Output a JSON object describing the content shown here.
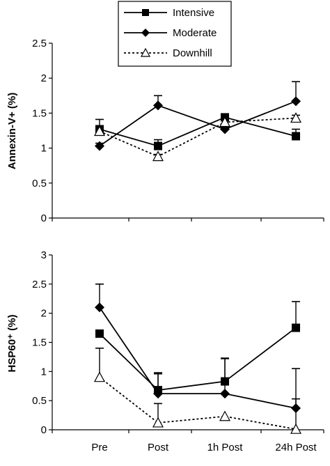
{
  "legend": {
    "placement": "top-center",
    "items": [
      {
        "label": "Intensive",
        "marker": "square"
      },
      {
        "label": "Moderate",
        "marker": "diamond"
      },
      {
        "label": "Downhill",
        "marker": "triangle-open",
        "dashed": true
      }
    ]
  },
  "chart_data": [
    {
      "type": "line",
      "title": "",
      "xlabel": "",
      "ylabel": "Annexin-V+ (%)",
      "ylim": [
        0,
        2.5
      ],
      "yticks": [
        "0",
        "0.5",
        "1",
        "1.5",
        "2",
        "2.5"
      ],
      "ytick_values": [
        0,
        0.5,
        1,
        1.5,
        2,
        2.5
      ],
      "categories": [
        "Pre",
        "Post",
        "1h Post",
        "24h Post"
      ],
      "grid": false,
      "series": [
        {
          "name": "Intensive",
          "values": [
            1.27,
            1.03,
            1.44,
            1.17
          ],
          "error": [
            0.14,
            0.09,
            0.04,
            0.1
          ]
        },
        {
          "name": "Moderate",
          "values": [
            1.03,
            1.61,
            1.27,
            1.67
          ],
          "error": [
            0.04,
            0.14,
            0.03,
            0.28
          ]
        },
        {
          "name": "Downhill",
          "values": [
            1.24,
            0.88,
            1.37,
            1.43
          ],
          "error": [
            0.03,
            0.03,
            0.03,
            0.04
          ]
        }
      ]
    },
    {
      "type": "line",
      "title": "",
      "xlabel": "",
      "ylabel": "HSP60⁺ (%)",
      "ylim": [
        0,
        3
      ],
      "yticks": [
        "0",
        "0.5",
        "1",
        "1.5",
        "2",
        "2.5",
        "3"
      ],
      "ytick_values": [
        0,
        0.5,
        1,
        1.5,
        2,
        2.5,
        3
      ],
      "categories": [
        "Pre",
        "Post",
        "1h Post",
        "24h Post"
      ],
      "xtick_labels": [
        "Pre",
        "Post",
        "1h Post",
        "24h Post"
      ],
      "grid": false,
      "series": [
        {
          "name": "Intensive",
          "values": [
            1.65,
            0.68,
            0.83,
            1.75
          ],
          "error": [
            0.0,
            0.3,
            0.4,
            0.45
          ]
        },
        {
          "name": "Moderate",
          "values": [
            2.1,
            0.62,
            0.62,
            0.37
          ],
          "error": [
            0.4,
            0.34,
            0.6,
            0.68
          ]
        },
        {
          "name": "Downhill",
          "values": [
            0.9,
            0.12,
            0.23,
            0.01
          ],
          "error": [
            0.5,
            0.33,
            0.0,
            0.52
          ]
        }
      ]
    }
  ]
}
